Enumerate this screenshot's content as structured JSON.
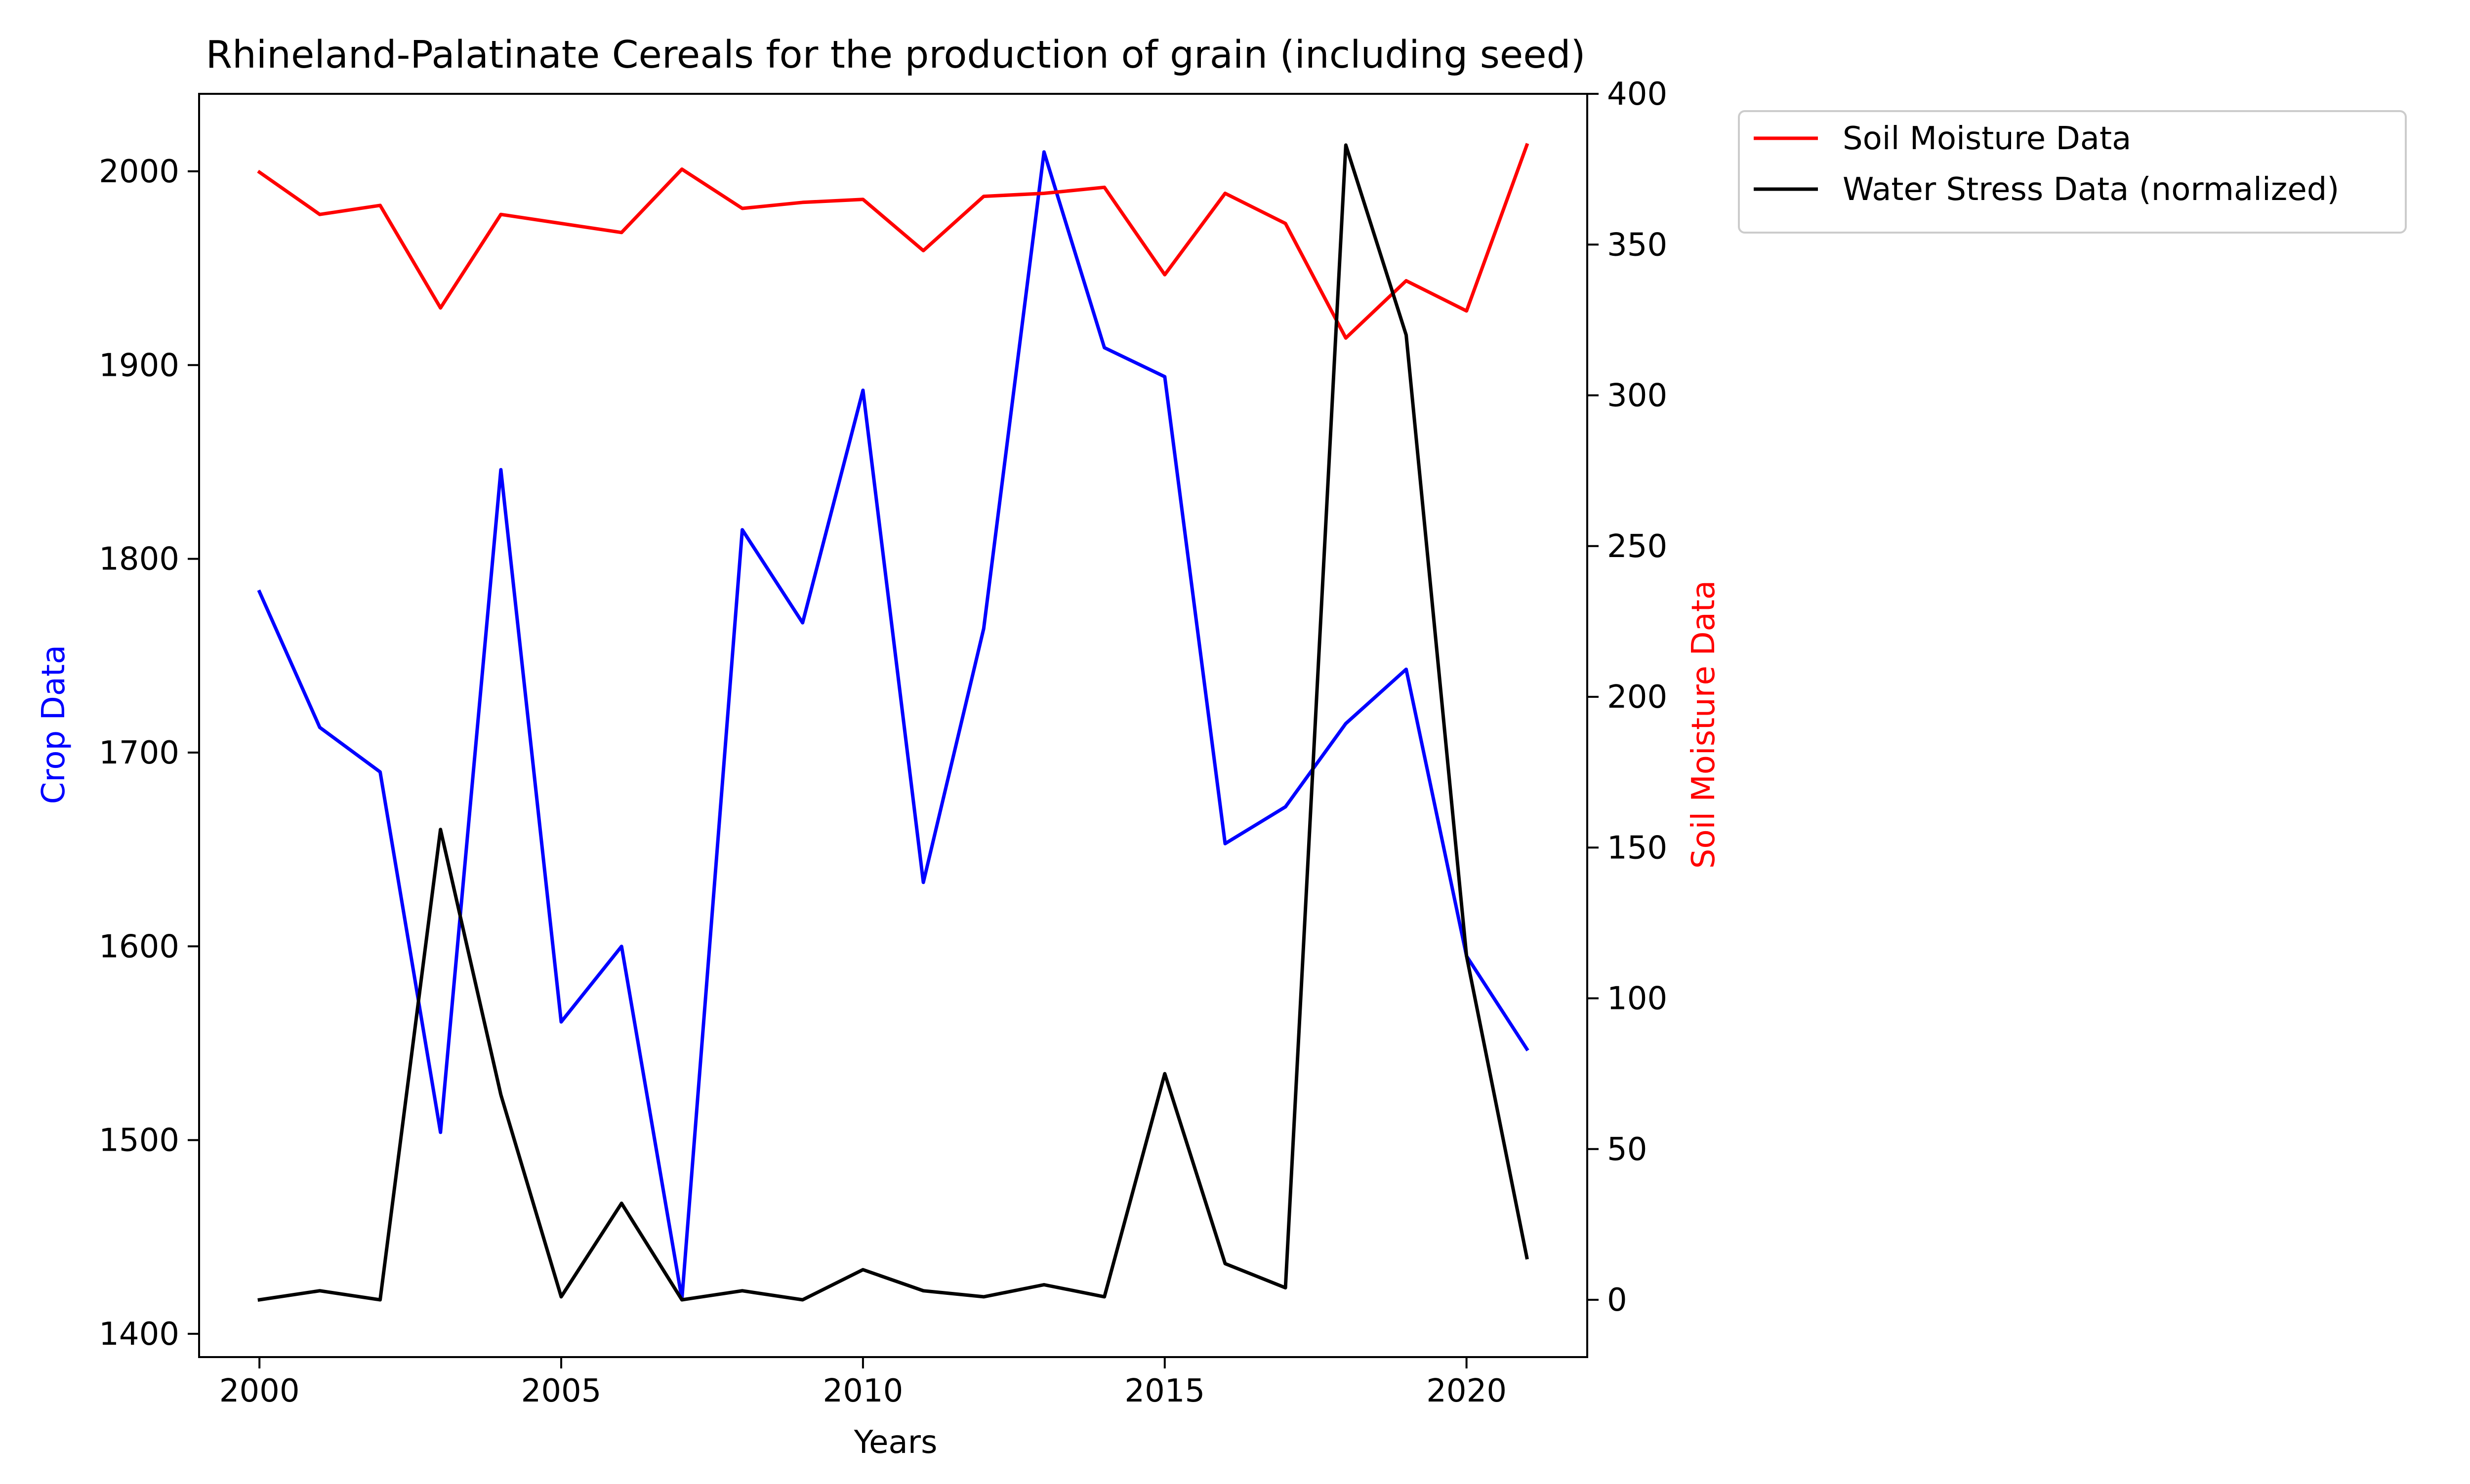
{
  "chart_data": {
    "type": "line",
    "title": "Rhineland-Palatinate Cereals for the production of grain (including seed)",
    "xlabel": "Years",
    "ylabel_left": "Crop Data",
    "ylabel_right": "Soil Moisture Data",
    "x": [
      2000,
      2001,
      2002,
      2003,
      2004,
      2005,
      2006,
      2007,
      2008,
      2009,
      2010,
      2011,
      2012,
      2013,
      2014,
      2015,
      2016,
      2017,
      2018,
      2019,
      2020,
      2021
    ],
    "xlim": [
      1999,
      2022
    ],
    "ylim_left": [
      1388,
      2040
    ],
    "ylim_right": [
      -19,
      400
    ],
    "x_ticks": [
      2000,
      2005,
      2010,
      2015,
      2020
    ],
    "y_ticks_left": [
      1400,
      1500,
      1600,
      1700,
      1800,
      1900,
      2000
    ],
    "y_ticks_right": [
      0,
      50,
      100,
      150,
      200,
      250,
      300,
      350,
      400
    ],
    "legend_position": "outside top-right",
    "colors": {
      "crop": "#0000ff",
      "soil": "#ff0000",
      "water": "#000000",
      "left_label": "#0000ff",
      "right_label": "#ff0000"
    },
    "series": [
      {
        "axis": "left",
        "color": "#0000ff",
        "values": [
          1783,
          1713,
          1690,
          1504,
          1846,
          1561,
          1600,
          1418,
          1815,
          1767,
          1887,
          1633,
          1764,
          2010,
          1909,
          1894,
          1653,
          1672,
          1715,
          1743,
          1595,
          1547
        ]
      },
      {
        "name": "Soil Moisture Data",
        "axis": "right",
        "color": "#ff0000",
        "values": [
          374,
          360,
          363,
          329,
          360,
          357,
          354,
          375,
          362,
          364,
          365,
          348,
          366,
          367,
          369,
          340,
          367,
          357,
          319,
          338,
          328,
          383
        ]
      },
      {
        "name": "Water Stress Data (normalized)",
        "axis": "right",
        "color": "#000000",
        "values": [
          0,
          3,
          0,
          156,
          68,
          1,
          32,
          0,
          3,
          0,
          10,
          3,
          1,
          5,
          1,
          75,
          12,
          4,
          383,
          320,
          114,
          14
        ]
      }
    ]
  }
}
